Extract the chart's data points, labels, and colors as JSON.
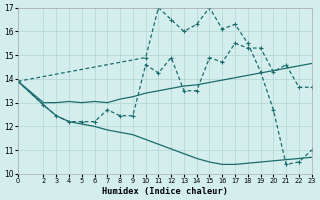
{
  "xlabel": "Humidex (Indice chaleur)",
  "bg_color": "#d4eeee",
  "grid_color": "#b8d8d8",
  "line_color": "#1a6b6b",
  "xlim": [
    0,
    23
  ],
  "ylim": [
    10,
    17
  ],
  "xticks": [
    0,
    2,
    3,
    4,
    5,
    6,
    7,
    8,
    9,
    10,
    11,
    12,
    13,
    14,
    15,
    16,
    17,
    18,
    19,
    20,
    21,
    22,
    23
  ],
  "yticks": [
    10,
    11,
    12,
    13,
    14,
    15,
    16,
    17
  ],
  "line_top_x": [
    0,
    10,
    11,
    12,
    13,
    14,
    15,
    16,
    17,
    18,
    19,
    20,
    21,
    22,
    23
  ],
  "line_top_y": [
    13.9,
    14.9,
    17.0,
    16.5,
    16.0,
    16.3,
    17.0,
    16.1,
    16.3,
    15.5,
    14.3,
    12.7,
    10.4,
    10.5,
    11.0
  ],
  "line_mid_upper_x": [
    0,
    2,
    3,
    4,
    5,
    6,
    7,
    8,
    9,
    10,
    11,
    12,
    13,
    14,
    15,
    16,
    17,
    18,
    19,
    20,
    21,
    22,
    23
  ],
  "line_mid_upper_y": [
    13.9,
    12.9,
    12.45,
    12.2,
    12.2,
    12.2,
    12.7,
    12.45,
    12.45,
    14.6,
    14.25,
    14.9,
    13.5,
    13.5,
    14.9,
    14.7,
    15.5,
    15.3,
    15.3,
    14.3,
    14.6,
    13.65,
    13.65
  ],
  "line_mid_lower_x": [
    0,
    2,
    3,
    4,
    5,
    6,
    7,
    8,
    9,
    10,
    11,
    12,
    13,
    14,
    15,
    16,
    17,
    18,
    19,
    20,
    21,
    22,
    23
  ],
  "line_mid_lower_y": [
    13.9,
    13.0,
    13.0,
    13.05,
    13.0,
    13.05,
    13.0,
    13.15,
    13.25,
    13.4,
    13.5,
    13.6,
    13.7,
    13.75,
    13.85,
    13.95,
    14.05,
    14.15,
    14.25,
    14.35,
    14.45,
    14.55,
    14.65
  ],
  "line_bot_x": [
    0,
    2,
    3,
    4,
    5,
    6,
    7,
    8,
    9,
    10,
    11,
    12,
    13,
    14,
    15,
    16,
    17,
    18,
    19,
    20,
    21,
    22,
    23
  ],
  "line_bot_y": [
    13.9,
    12.9,
    12.45,
    12.2,
    12.1,
    12.0,
    11.85,
    11.75,
    11.65,
    11.45,
    11.25,
    11.05,
    10.85,
    10.65,
    10.5,
    10.4,
    10.4,
    10.45,
    10.5,
    10.55,
    10.6,
    10.65,
    10.7
  ]
}
